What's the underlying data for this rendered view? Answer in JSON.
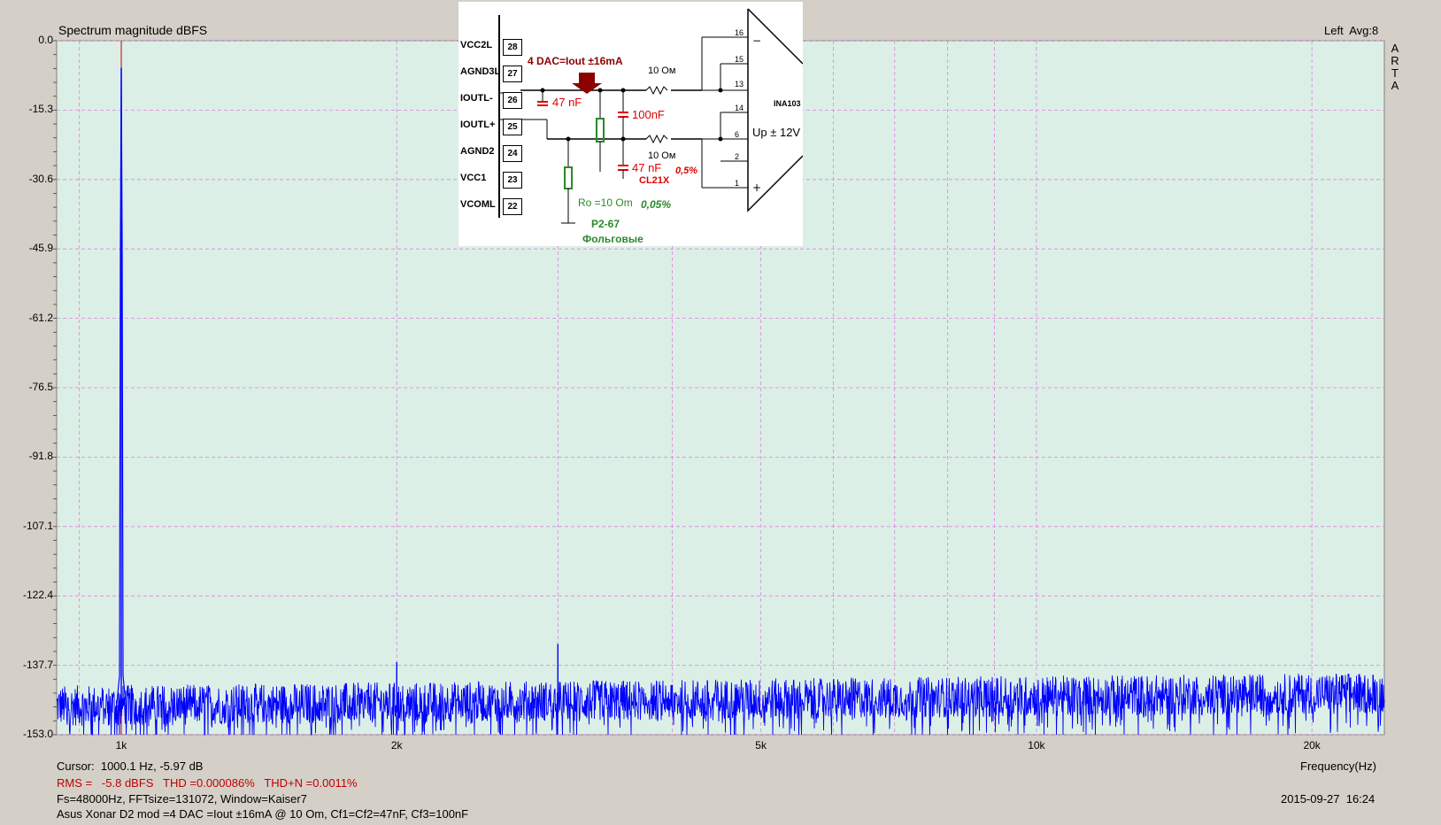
{
  "header": {
    "title": "Spectrum magnitude dBFS",
    "channel": "Left  Avg:8",
    "brand_letters": [
      "A",
      "R",
      "T",
      "A"
    ]
  },
  "footer": {
    "cursor": "Cursor:  1000.1 Hz, -5.97 dB",
    "measurements": "RMS =   -5.8 dBFS   THD =0.000086%   THD+N =0.0011%",
    "params": "Fs=48000Hz, FFTsize=131072, Window=Kaiser7",
    "description": "Asus Xonar D2 mod =4 DAC =Iout ±16mA @ 10 Om, Cf1=Cf2=47nF, Cf3=100nF",
    "timestamp": "2015-09-27  16:24",
    "xaxis_label": "Frequency(Hz)"
  },
  "colors": {
    "plot_bg": "#dcefe6",
    "trace": "#0000ff",
    "grid": "#e080e0",
    "cursor": "#d00000",
    "annotation_red": "#c00000"
  },
  "chart_data": {
    "type": "line",
    "title": "Spectrum magnitude dBFS",
    "xlabel": "Frequency(Hz)",
    "ylabel": "",
    "xscale": "log",
    "xlim": [
      850,
      24000
    ],
    "ylim": [
      -153.0,
      0.0
    ],
    "yticks": [
      "0.0",
      "-15.3",
      "-30.6",
      "-45.9",
      "-61.2",
      "-76.5",
      "-91.8",
      "-107.1",
      "-122.4",
      "-137.7",
      "-153.0"
    ],
    "xticks": [
      {
        "value": 1000,
        "label": "1k"
      },
      {
        "value": 2000,
        "label": "2k"
      },
      {
        "value": 5000,
        "label": "5k"
      },
      {
        "value": 10000,
        "label": "10k"
      },
      {
        "value": 20000,
        "label": "20k"
      }
    ],
    "grid": true,
    "cursor_freq": 1000.1,
    "noise_floor_db": -148,
    "series": [
      {
        "peaks": [
          {
            "x": 1000.1,
            "y": -5.97
          },
          {
            "x": 2000,
            "y": -137
          },
          {
            "x": 3000,
            "y": -133
          },
          {
            "x": 4000,
            "y": -142
          },
          {
            "x": 9000,
            "y": -147
          },
          {
            "x": 10000,
            "y": -143
          },
          {
            "x": 11000,
            "y": -144
          },
          {
            "x": 13000,
            "y": -145
          },
          {
            "x": 16000,
            "y": -143
          },
          {
            "x": 17000,
            "y": -144
          },
          {
            "x": 19000,
            "y": -145
          },
          {
            "x": 22000,
            "y": -144
          }
        ]
      }
    ]
  },
  "schematic": {
    "pins": [
      {
        "name": "VCC2L",
        "num": "28"
      },
      {
        "name": "AGND3L",
        "num": "27"
      },
      {
        "name": "IOUTL-",
        "num": "26"
      },
      {
        "name": "IOUTL+",
        "num": "25"
      },
      {
        "name": "AGND2",
        "num": "24"
      },
      {
        "name": "VCC1",
        "num": "23"
      },
      {
        "name": "VCOML",
        "num": "22"
      }
    ],
    "dac_label": "4 DAC=Iout ±16mA",
    "res_top": "10 Ом",
    "res_bottom": "10 Ом",
    "cap1": "47 nF",
    "cap2": "100nF",
    "cap3": "47 nF",
    "cap3_tol": "0,5%",
    "cap3_type": "CL21X",
    "ro_label": "Ro =10 Om",
    "ro_tol": "0,05%",
    "res_type": "P2-67",
    "res_kind": "Фольговые",
    "opamp": "INA103",
    "supply": "Up ± 12V",
    "opamp_pins": [
      "16",
      "15",
      "13",
      "14",
      "6",
      "2",
      "1"
    ]
  }
}
